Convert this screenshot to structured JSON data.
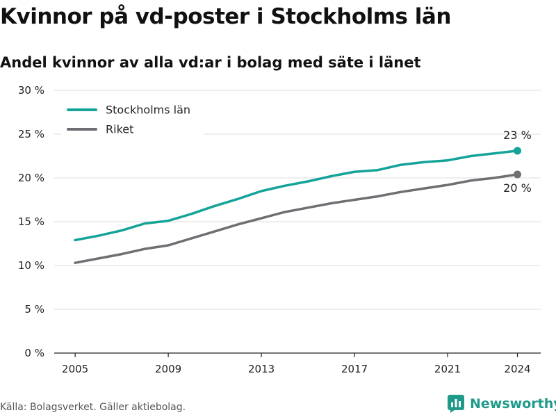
{
  "title": "Kvinnor på vd-poster i Stockholms län",
  "subtitle": "Andel kvinnor av alla vd:ar i bolag med säte i länet",
  "source": "Källa: Bolagsverket. Gäller aktiebolag.",
  "brand": "Newsworthy",
  "colors": {
    "stockholm": "#14a398",
    "riket": "#6e6e73",
    "grid": "#dddddd",
    "brand": "#1f9a8a"
  },
  "icons": {
    "brand_logo": "bar-chart-logo-icon"
  },
  "chart_data": {
    "type": "line",
    "x": [
      2005,
      2006,
      2007,
      2008,
      2009,
      2010,
      2011,
      2012,
      2013,
      2014,
      2015,
      2016,
      2017,
      2018,
      2019,
      2020,
      2021,
      2022,
      2023,
      2024
    ],
    "series": [
      {
        "name": "Stockholms län",
        "color": "#14a398",
        "values": [
          12.9,
          13.4,
          14.0,
          14.8,
          15.1,
          15.9,
          16.8,
          17.6,
          18.5,
          19.1,
          19.6,
          20.2,
          20.7,
          20.9,
          21.5,
          21.8,
          22.0,
          22.5,
          22.8,
          23.1
        ]
      },
      {
        "name": "Riket",
        "color": "#6e6e73",
        "values": [
          10.3,
          10.8,
          11.3,
          11.9,
          12.3,
          13.1,
          13.9,
          14.7,
          15.4,
          16.1,
          16.6,
          17.1,
          17.5,
          17.9,
          18.4,
          18.8,
          19.2,
          19.7,
          20.0,
          20.4
        ]
      }
    ],
    "xticks": [
      2005,
      2009,
      2013,
      2017,
      2021,
      2024
    ],
    "xtick_labels": [
      "2005",
      "2009",
      "2013",
      "2017",
      "2021",
      "2024"
    ],
    "yticks": [
      0,
      5,
      10,
      15,
      20,
      25,
      30
    ],
    "ytick_labels": [
      "0 %",
      "5 %",
      "10 %",
      "15 %",
      "20 %",
      "25 %",
      "30 %"
    ],
    "xlim": [
      2004.1,
      2025
    ],
    "ylim": [
      0,
      30
    ],
    "end_labels": [
      "23 %",
      "20 %"
    ],
    "legend": {
      "position": "top-left",
      "entries": [
        "Stockholms län",
        "Riket"
      ]
    },
    "grid": true
  }
}
